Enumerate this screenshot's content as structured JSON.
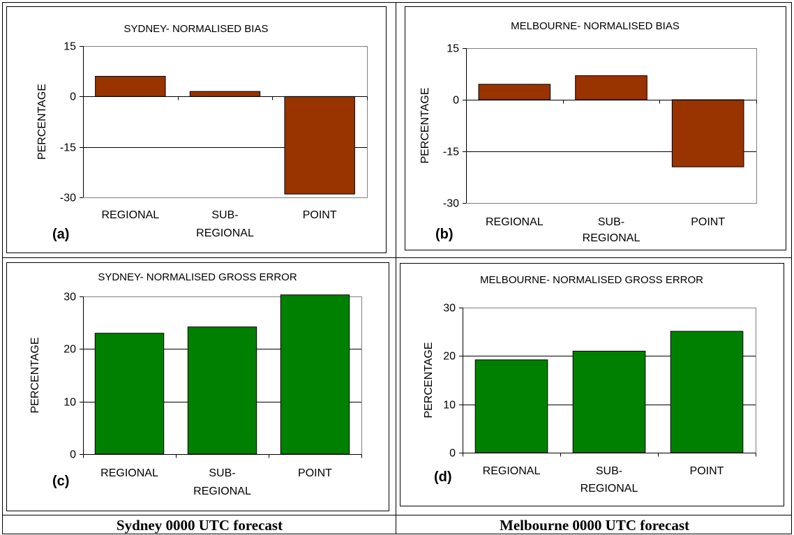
{
  "chart_data": [
    {
      "panel_label": "(a)",
      "type": "bar",
      "title": "SYDNEY- NORMALISED BIAS",
      "ylabel": "PERCENTAGE",
      "categories": [
        "REGIONAL",
        "SUB-\nREGIONAL",
        "POINT"
      ],
      "values": [
        6,
        1.5,
        -29
      ],
      "ylim": [
        -30,
        15
      ],
      "yticks": [
        -30,
        -15,
        0,
        15
      ],
      "bar_color": "#993300",
      "grid": true
    },
    {
      "panel_label": "(b)",
      "type": "bar",
      "title": "MELBOURNE- NORMALISED BIAS",
      "ylabel": "PERCENTAGE",
      "categories": [
        "REGIONAL",
        "SUB-\nREGIONAL",
        "POINT"
      ],
      "values": [
        4.5,
        7,
        -19.5
      ],
      "ylim": [
        -30,
        15
      ],
      "yticks": [
        -30,
        -15,
        0,
        15
      ],
      "bar_color": "#993300",
      "grid": true
    },
    {
      "panel_label": "(c)",
      "type": "bar",
      "title": "SYDNEY- NORMALISED GROSS ERROR",
      "ylabel": "PERCENTAGE",
      "categories": [
        "REGIONAL",
        "SUB-\nREGIONAL",
        "POINT"
      ],
      "values": [
        23,
        24.2,
        30.3
      ],
      "ylim": [
        0,
        30
      ],
      "yticks": [
        0,
        10,
        20,
        30
      ],
      "bar_color": "#008000",
      "grid": true
    },
    {
      "panel_label": "(d)",
      "type": "bar",
      "title": "MELBOURNE- NORMALISED GROSS ERROR",
      "ylabel": "PERCENTAGE",
      "categories": [
        "REGIONAL",
        "SUB-\nREGIONAL",
        "POINT"
      ],
      "values": [
        19.2,
        21,
        25.1
      ],
      "ylim": [
        0,
        30
      ],
      "yticks": [
        0,
        10,
        20,
        30
      ],
      "bar_color": "#008000",
      "grid": true
    }
  ],
  "captions": {
    "left": "Sydney 0000 UTC forecast",
    "right": "Melbourne 0000 UTC forecast"
  }
}
